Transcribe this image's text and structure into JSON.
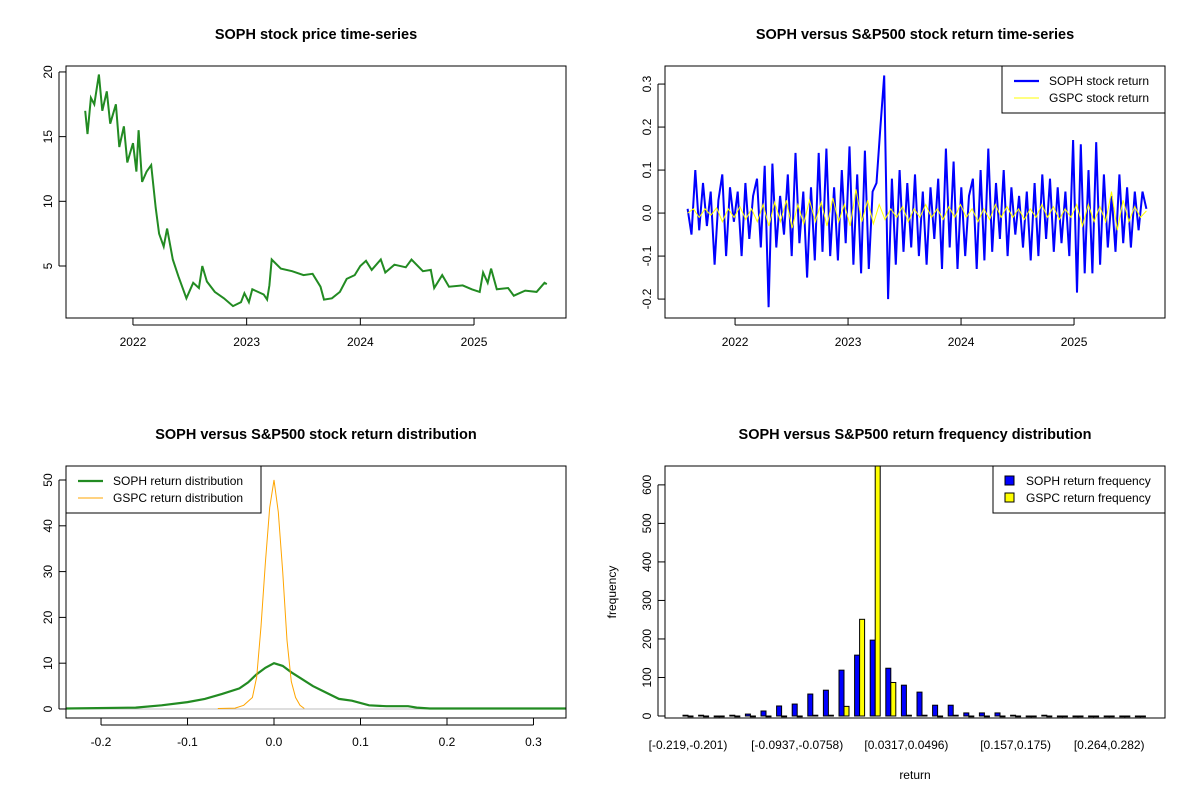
{
  "chart_data": [
    {
      "type": "line",
      "title": "SOPH stock price time-series",
      "xlabel": "",
      "ylabel": "",
      "x_ticks": [
        "2022",
        "2023",
        "2024",
        "2025"
      ],
      "y_ticks": [
        "5",
        "10",
        "15",
        "20"
      ],
      "ylim": [
        0.98,
        20.46
      ],
      "color": "#228B22",
      "series": [
        {
          "name": "SOPH price",
          "points": [
            [
              2021.58,
              17
            ],
            [
              2021.6,
              15.2
            ],
            [
              2021.63,
              18
            ],
            [
              2021.66,
              17.5
            ],
            [
              2021.7,
              19.8
            ],
            [
              2021.73,
              17
            ],
            [
              2021.77,
              18.5
            ],
            [
              2021.8,
              16
            ],
            [
              2021.85,
              17.5
            ],
            [
              2021.88,
              14.2
            ],
            [
              2021.92,
              15.8
            ],
            [
              2021.95,
              13
            ],
            [
              2022.0,
              14.5
            ],
            [
              2022.03,
              12.3
            ],
            [
              2022.05,
              15.5
            ],
            [
              2022.08,
              11.5
            ],
            [
              2022.12,
              12.3
            ],
            [
              2022.16,
              12.8
            ],
            [
              2022.2,
              9.5
            ],
            [
              2022.23,
              7.5
            ],
            [
              2022.27,
              6.5
            ],
            [
              2022.3,
              7.9
            ],
            [
              2022.35,
              5.5
            ],
            [
              2022.4,
              4.2
            ],
            [
              2022.47,
              2.5
            ],
            [
              2022.53,
              3.7
            ],
            [
              2022.58,
              3.3
            ],
            [
              2022.61,
              5.0
            ],
            [
              2022.65,
              3.8
            ],
            [
              2022.72,
              3.0
            ],
            [
              2022.8,
              2.5
            ],
            [
              2022.88,
              1.9
            ],
            [
              2022.95,
              2.2
            ],
            [
              2022.98,
              2.9
            ],
            [
              2023.02,
              2.2
            ],
            [
              2023.05,
              3.2
            ],
            [
              2023.15,
              2.8
            ],
            [
              2023.18,
              2.4
            ],
            [
              2023.2,
              3.5
            ],
            [
              2023.22,
              5.5
            ],
            [
              2023.3,
              4.8
            ],
            [
              2023.4,
              4.6
            ],
            [
              2023.5,
              4.3
            ],
            [
              2023.58,
              4.4
            ],
            [
              2023.65,
              3.4
            ],
            [
              2023.68,
              2.4
            ],
            [
              2023.75,
              2.5
            ],
            [
              2023.82,
              3.0
            ],
            [
              2023.88,
              4.0
            ],
            [
              2023.95,
              4.3
            ],
            [
              2024.0,
              5.0
            ],
            [
              2024.05,
              5.4
            ],
            [
              2024.1,
              4.7
            ],
            [
              2024.18,
              5.5
            ],
            [
              2024.22,
              4.5
            ],
            [
              2024.3,
              5.1
            ],
            [
              2024.4,
              4.9
            ],
            [
              2024.45,
              5.5
            ],
            [
              2024.55,
              4.6
            ],
            [
              2024.62,
              4.7
            ],
            [
              2024.65,
              3.3
            ],
            [
              2024.72,
              4.3
            ],
            [
              2024.78,
              3.4
            ],
            [
              2024.9,
              3.5
            ],
            [
              2024.98,
              3.2
            ],
            [
              2025.05,
              3.0
            ],
            [
              2025.08,
              4.5
            ],
            [
              2025.12,
              3.7
            ],
            [
              2025.15,
              4.8
            ],
            [
              2025.2,
              3.2
            ],
            [
              2025.3,
              3.3
            ],
            [
              2025.35,
              2.7
            ],
            [
              2025.45,
              3.1
            ],
            [
              2025.55,
              3.0
            ],
            [
              2025.62,
              3.7
            ],
            [
              2025.64,
              3.6
            ]
          ]
        }
      ]
    },
    {
      "type": "line",
      "title": "SOPH versus S&P500 stock return time-series",
      "x_ticks": [
        "2022",
        "2023",
        "2024",
        "2025"
      ],
      "y_ticks": [
        "-0.2",
        "-0.1",
        "0.0",
        "0.1",
        "0.2",
        "0.3"
      ],
      "ylim": [
        -0.244,
        0.342
      ],
      "x_range": [
        2021.58,
        2025.64
      ],
      "legend_position": "top-right",
      "series": [
        {
          "name": "SOPH stock return",
          "color": "#0000FF",
          "values": [
            0.01,
            -0.05,
            0.1,
            -0.04,
            0.07,
            -0.03,
            0.05,
            -0.12,
            0.03,
            0.09,
            -0.1,
            0.06,
            -0.02,
            0.05,
            -0.1,
            0.07,
            -0.06,
            0.04,
            0.08,
            -0.08,
            0.11,
            -0.219,
            0.115,
            -0.08,
            0.04,
            -0.05,
            0.09,
            -0.1,
            0.14,
            -0.07,
            0.05,
            -0.15,
            0.06,
            -0.11,
            0.14,
            -0.09,
            0.15,
            -0.1,
            0.06,
            -0.11,
            0.1,
            -0.07,
            0.155,
            -0.12,
            0.09,
            -0.14,
            0.145,
            -0.13,
            0.05,
            0.07,
            0.2,
            0.32,
            -0.2,
            0.08,
            -0.12,
            0.1,
            -0.09,
            0.07,
            -0.08,
            0.09,
            -0.1,
            0.05,
            -0.12,
            0.06,
            -0.06,
            0.08,
            -0.13,
            0.15,
            -0.08,
            0.12,
            -0.13,
            0.06,
            -0.1,
            0.04,
            0.08,
            -0.13,
            0.1,
            -0.11,
            0.15,
            -0.09,
            0.07,
            -0.06,
            0.1,
            -0.1,
            0.06,
            -0.05,
            0.04,
            -0.08,
            0.05,
            -0.11,
            0.07,
            -0.1,
            0.09,
            -0.06,
            0.08,
            -0.09,
            0.06,
            -0.07,
            0.05,
            -0.1,
            0.17,
            -0.185,
            0.16,
            -0.14,
            0.1,
            -0.14,
            0.165,
            -0.12,
            0.09,
            -0.08,
            0.04,
            -0.09,
            0.09,
            -0.07,
            0.06,
            -0.08,
            0.05,
            -0.04,
            0.05,
            0.01
          ]
        },
        {
          "name": "GSPC stock return",
          "color": "#FFFF00",
          "values": [
            0.0,
            0.01,
            -0.01,
            0.01,
            -0.005,
            0.012,
            -0.02,
            0.01,
            -0.01,
            0.015,
            -0.015,
            0.01,
            -0.02,
            0.02,
            -0.03,
            0.025,
            -0.02,
            0.03,
            -0.035,
            0.02,
            -0.025,
            0.03,
            -0.02,
            0.025,
            -0.03,
            0.035,
            -0.02,
            0.02,
            -0.03,
            0.055,
            -0.02,
            0.03,
            -0.025,
            0.02,
            -0.015,
            0.01,
            -0.01,
            0.015,
            -0.02,
            0.01,
            -0.01,
            0.02,
            -0.01,
            0.01,
            -0.015,
            0.015,
            -0.01,
            0.02,
            -0.01,
            0.01,
            -0.02,
            0.01,
            -0.015,
            0.02,
            -0.01,
            0.015,
            -0.01,
            0.01,
            -0.015,
            0.01,
            -0.01,
            0.02,
            -0.01,
            0.015,
            -0.015,
            0.01,
            -0.01,
            0.02,
            -0.03,
            0.02,
            -0.02,
            0.015,
            -0.02,
            0.05,
            -0.04,
            0.03,
            -0.02,
            0.015,
            -0.01,
            0.005
          ]
        }
      ]
    },
    {
      "type": "line",
      "title": "SOPH versus S&P500 stock return distribution",
      "x_ticks": [
        "-0.2",
        "-0.1",
        "0.0",
        "0.1",
        "0.2",
        "0.3"
      ],
      "y_ticks": [
        "0",
        "10",
        "20",
        "30",
        "40",
        "50"
      ],
      "xlim": [
        -0.2405,
        0.3376
      ],
      "ylim": [
        -1.97,
        53.06
      ],
      "legend_position": "top-left",
      "series": [
        {
          "name": "SOPH return distribution",
          "color": "#228B22",
          "points": [
            [
              -0.2405,
              0.1
            ],
            [
              -0.16,
              0.3
            ],
            [
              -0.13,
              0.8
            ],
            [
              -0.1,
              1.5
            ],
            [
              -0.08,
              2.2
            ],
            [
              -0.06,
              3.3
            ],
            [
              -0.04,
              4.5
            ],
            [
              -0.03,
              5.8
            ],
            [
              -0.02,
              7.6
            ],
            [
              -0.01,
              9.0
            ],
            [
              0.0,
              10.0
            ],
            [
              0.01,
              9.4
            ],
            [
              0.02,
              8.0
            ],
            [
              0.03,
              6.8
            ],
            [
              0.045,
              5.0
            ],
            [
              0.06,
              3.6
            ],
            [
              0.075,
              2.2
            ],
            [
              0.09,
              1.8
            ],
            [
              0.11,
              0.8
            ],
            [
              0.13,
              0.6
            ],
            [
              0.155,
              0.6
            ],
            [
              0.165,
              0.3
            ],
            [
              0.18,
              0.1
            ],
            [
              0.3376,
              0.1
            ]
          ]
        },
        {
          "name": "GSPC return distribution",
          "color": "#FFA500",
          "points": [
            [
              -0.065,
              0.1
            ],
            [
              -0.045,
              0.2
            ],
            [
              -0.035,
              0.8
            ],
            [
              -0.025,
              2.5
            ],
            [
              -0.02,
              7
            ],
            [
              -0.015,
              18
            ],
            [
              -0.01,
              32
            ],
            [
              -0.005,
              44
            ],
            [
              0.0,
              50
            ],
            [
              0.005,
              43
            ],
            [
              0.01,
              30
            ],
            [
              0.015,
              15
            ],
            [
              0.02,
              6
            ],
            [
              0.025,
              2.5
            ],
            [
              0.03,
              0.8
            ],
            [
              0.035,
              0.1
            ]
          ]
        },
        {
          "name": "baseline",
          "color": "#BEBEBE",
          "points": [
            [
              -0.2405,
              0
            ],
            [
              0.3376,
              0
            ]
          ]
        }
      ]
    },
    {
      "type": "bar",
      "title": "SOPH versus S&P500 return frequency distribution",
      "xlabel": "return",
      "ylabel": "frequency",
      "y_ticks": [
        "0",
        "100",
        "200",
        "300",
        "400",
        "500",
        "600"
      ],
      "ylim": [
        -5.2,
        649
      ],
      "bin_count": 30,
      "x_tick_labels": [
        {
          "bin": 0,
          "label": "[-0.219,-0.201)"
        },
        {
          "bin": 7,
          "label": "[-0.0937,-0.0758)"
        },
        {
          "bin": 14,
          "label": "[0.0317,0.0496)"
        },
        {
          "bin": 21,
          "label": "[0.157,0.175)"
        },
        {
          "bin": 27,
          "label": "[0.264,0.282)"
        }
      ],
      "legend_position": "top-right",
      "series": [
        {
          "name": "SOPH return frequency",
          "color": "#0000FF",
          "values": [
            2,
            2,
            0,
            2,
            5,
            13,
            26,
            31,
            57,
            67,
            119,
            158,
            197,
            124,
            80,
            62,
            28,
            28,
            8,
            8,
            8,
            2,
            0,
            2,
            0,
            0,
            0,
            0,
            0,
            0
          ]
        },
        {
          "name": "GSPC return frequency",
          "color": "#FFFF00",
          "values": [
            0,
            0,
            0,
            0,
            0,
            0,
            0,
            0,
            2,
            2,
            25,
            251,
            670,
            87,
            2,
            2,
            0,
            2,
            0,
            0,
            0,
            0,
            0,
            0,
            0,
            0,
            0,
            0,
            0,
            0
          ]
        }
      ]
    }
  ]
}
